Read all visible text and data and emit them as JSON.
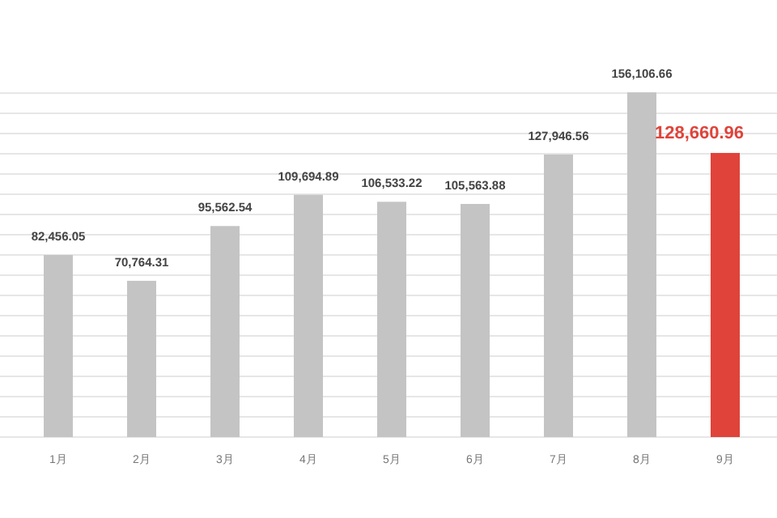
{
  "chart_data": {
    "type": "bar",
    "categories": [
      "1月",
      "2月",
      "3月",
      "4月",
      "5月",
      "6月",
      "7月",
      "8月",
      "9月"
    ],
    "values": [
      82456.05,
      70764.31,
      95562.54,
      109694.89,
      106533.22,
      105563.88,
      127946.56,
      156106.66,
      128660.96
    ],
    "colors": [
      "#c4c4c4",
      "#c4c4c4",
      "#c4c4c4",
      "#c4c4c4",
      "#c4c4c4",
      "#c4c4c4",
      "#c4c4c4",
      "#c4c4c4",
      "#e0433a"
    ],
    "value_labels": [
      "82,456.05",
      "70,764.31",
      "95,562.54",
      "109,694.89",
      "106,533.22",
      "105,563.88",
      "127,946.56",
      "156,106.66",
      "128,660.96"
    ],
    "grid": true
  }
}
